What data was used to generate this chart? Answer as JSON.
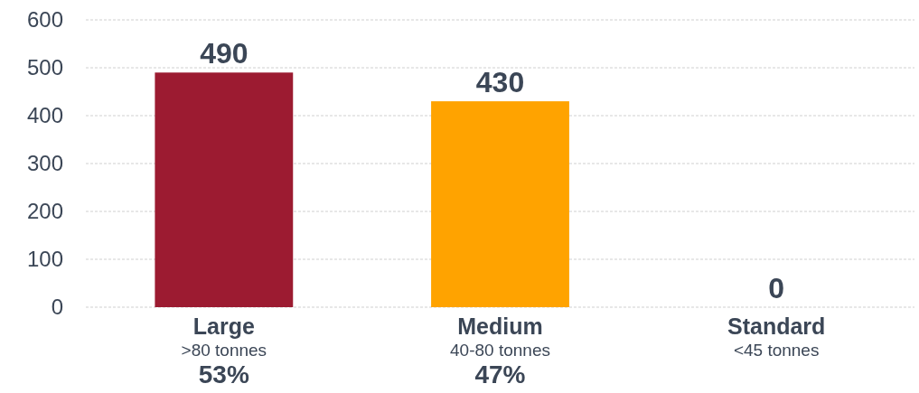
{
  "chart_data": {
    "type": "bar",
    "categories": [
      "Large\n>80 tonnes\n53%",
      "Medium\n40-80 tonnes\n47%",
      "Standard\n<45 tonnes"
    ],
    "values": [
      490,
      430,
      0
    ],
    "colors": [
      "#9c1b31",
      "#ffa300",
      "#9c1b31"
    ],
    "ylim": [
      0,
      600
    ],
    "yticks": [
      0,
      100,
      200,
      300,
      400,
      500,
      600
    ],
    "grid": "y",
    "data_labels": true
  }
}
